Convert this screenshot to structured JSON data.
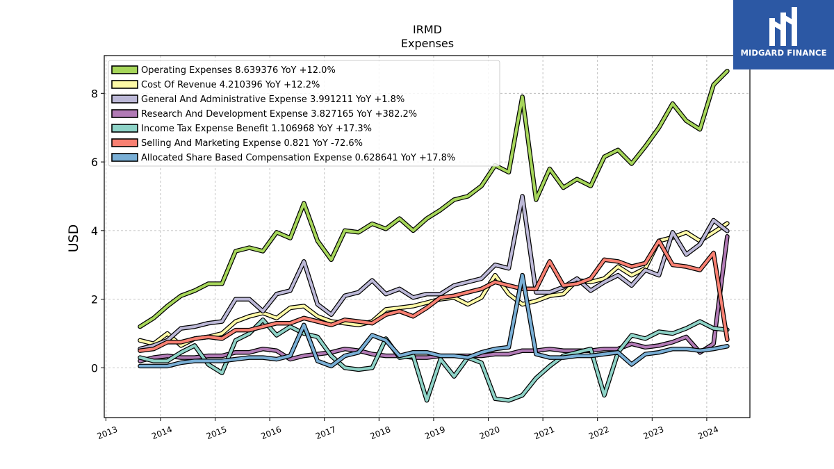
{
  "brand": {
    "name": "MIDGARD FINANCE",
    "bg_color": "#2c58a4"
  },
  "chart_data": {
    "type": "line",
    "title": "IRMD",
    "subtitle": "Expenses",
    "ylabel": "USD",
    "xlabel": "",
    "ylim": [
      -1.45,
      9.1
    ],
    "xlim": [
      2012.97,
      2024.79
    ],
    "yticks": [
      0,
      2,
      4,
      6,
      8
    ],
    "xticks": [
      "2013",
      "2014",
      "2015",
      "2016",
      "2017",
      "2018",
      "2019",
      "2020",
      "2021",
      "2022",
      "2023",
      "2024"
    ],
    "grid": true,
    "legend_position": "top-left",
    "x": [
      "2013-Q3",
      "2013-Q4",
      "2014-Q1",
      "2014-Q2",
      "2014-Q3",
      "2014-Q4",
      "2015-Q1",
      "2015-Q2",
      "2015-Q3",
      "2015-Q4",
      "2016-Q1",
      "2016-Q2",
      "2016-Q3",
      "2016-Q4",
      "2017-Q1",
      "2017-Q2",
      "2017-Q3",
      "2017-Q4",
      "2018-Q1",
      "2018-Q2",
      "2018-Q3",
      "2018-Q4",
      "2019-Q1",
      "2019-Q2",
      "2019-Q3",
      "2019-Q4",
      "2020-Q1",
      "2020-Q2",
      "2020-Q3",
      "2020-Q4",
      "2021-Q1",
      "2021-Q2",
      "2021-Q3",
      "2021-Q4",
      "2022-Q1",
      "2022-Q2",
      "2022-Q3",
      "2022-Q4",
      "2023-Q1",
      "2023-Q2",
      "2023-Q3",
      "2023-Q4",
      "2024-Q1",
      "2024-Q2"
    ],
    "series": [
      {
        "name": "Operating Expenses",
        "legend": "Operating Expenses  8.639376 YoY +12.0%",
        "color": "#a6d65a",
        "values": [
          1.2,
          1.45,
          1.8,
          2.1,
          2.25,
          2.45,
          2.45,
          3.4,
          3.5,
          3.4,
          3.95,
          3.78,
          4.8,
          3.7,
          3.15,
          4.0,
          3.95,
          4.2,
          4.05,
          4.35,
          4.0,
          4.35,
          4.6,
          4.9,
          5.0,
          5.3,
          5.9,
          5.7,
          7.9,
          4.9,
          5.8,
          5.25,
          5.5,
          5.3,
          6.15,
          6.35,
          5.95,
          6.45,
          7.0,
          7.7,
          7.2,
          6.95,
          8.25,
          8.65
        ]
      },
      {
        "name": "Cost Of Revenue",
        "legend": "Cost Of Revenue  4.210396 YoY +12.2%",
        "color": "#fdf9a6",
        "values": [
          0.8,
          0.7,
          1.0,
          0.65,
          0.85,
          0.9,
          1.0,
          1.35,
          1.5,
          1.6,
          1.45,
          1.75,
          1.8,
          1.5,
          1.35,
          1.3,
          1.25,
          1.35,
          1.7,
          1.75,
          1.8,
          1.9,
          2.0,
          2.05,
          1.85,
          2.05,
          2.7,
          2.15,
          1.85,
          1.95,
          2.1,
          2.15,
          2.55,
          2.5,
          2.6,
          2.95,
          2.7,
          2.9,
          3.7,
          3.8,
          3.95,
          3.7,
          3.95,
          4.21
        ]
      },
      {
        "name": "General And Administrative Expense",
        "legend": "General And Administrative Expense  3.991211 YoY +1.8%",
        "color": "#bcb8d7",
        "values": [
          0.55,
          0.65,
          0.8,
          1.15,
          1.2,
          1.3,
          1.35,
          2.0,
          2.0,
          1.65,
          2.15,
          2.25,
          3.1,
          1.85,
          1.55,
          2.1,
          2.2,
          2.55,
          2.15,
          2.3,
          2.05,
          2.15,
          2.15,
          2.4,
          2.5,
          2.6,
          3.0,
          2.9,
          5.0,
          2.2,
          2.2,
          2.35,
          2.6,
          2.25,
          2.5,
          2.7,
          2.4,
          2.85,
          2.7,
          3.95,
          3.3,
          3.6,
          4.3,
          3.99
        ]
      },
      {
        "name": "Research And Development Expense",
        "legend": "Research And Development Expense  3.827165 YoY +382.2%",
        "color": "#b17ab5",
        "values": [
          0.2,
          0.3,
          0.35,
          0.3,
          0.3,
          0.35,
          0.35,
          0.45,
          0.45,
          0.55,
          0.5,
          0.25,
          0.35,
          0.4,
          0.45,
          0.55,
          0.5,
          0.4,
          0.35,
          0.35,
          0.3,
          0.3,
          0.35,
          0.35,
          0.35,
          0.35,
          0.4,
          0.4,
          0.5,
          0.5,
          0.55,
          0.5,
          0.5,
          0.5,
          0.55,
          0.55,
          0.7,
          0.6,
          0.65,
          0.75,
          0.9,
          0.45,
          0.7,
          3.83
        ]
      },
      {
        "name": "Income Tax Expense Benefit",
        "legend": "Income Tax Expense Benefit  1.106968 YoY +17.3%",
        "color": "#8ed3c7",
        "values": [
          0.3,
          0.2,
          0.2,
          0.45,
          0.65,
          0.1,
          -0.15,
          0.8,
          1.0,
          1.4,
          0.95,
          1.2,
          1.0,
          0.9,
          0.35,
          0.0,
          -0.05,
          0.0,
          0.85,
          0.3,
          0.35,
          -0.95,
          0.25,
          -0.25,
          0.3,
          0.15,
          -0.9,
          -0.95,
          -0.8,
          -0.3,
          0.05,
          0.35,
          0.45,
          0.55,
          -0.8,
          0.45,
          0.95,
          0.85,
          1.05,
          1.0,
          1.15,
          1.35,
          1.15,
          1.11
        ]
      },
      {
        "name": "Selling And Marketing Expense",
        "legend": "Selling And Marketing Expense  0.821 YoY -72.6%",
        "color": "#f88072",
        "values": [
          0.5,
          0.55,
          0.75,
          0.75,
          0.85,
          0.9,
          0.85,
          1.1,
          1.1,
          1.2,
          1.3,
          1.3,
          1.45,
          1.35,
          1.25,
          1.4,
          1.35,
          1.3,
          1.55,
          1.65,
          1.5,
          1.75,
          2.05,
          2.1,
          2.2,
          2.3,
          2.5,
          2.4,
          2.3,
          2.3,
          3.1,
          2.4,
          2.45,
          2.6,
          3.15,
          3.1,
          2.95,
          3.05,
          3.7,
          3.0,
          2.95,
          2.85,
          3.35,
          0.82
        ]
      },
      {
        "name": "Allocated Share Based Compensation Expense",
        "legend": "Allocated Share Based Compensation Expense  0.628641 YoY +17.8%",
        "color": "#79afd6",
        "values": [
          0.05,
          0.05,
          0.05,
          0.15,
          0.2,
          0.2,
          0.2,
          0.25,
          0.3,
          0.3,
          0.25,
          0.35,
          1.25,
          0.2,
          0.05,
          0.35,
          0.45,
          0.95,
          0.8,
          0.35,
          0.45,
          0.45,
          0.35,
          0.35,
          0.3,
          0.45,
          0.55,
          0.6,
          2.7,
          0.4,
          0.3,
          0.3,
          0.35,
          0.35,
          0.4,
          0.45,
          0.1,
          0.4,
          0.45,
          0.55,
          0.55,
          0.5,
          0.55,
          0.63
        ]
      }
    ]
  }
}
